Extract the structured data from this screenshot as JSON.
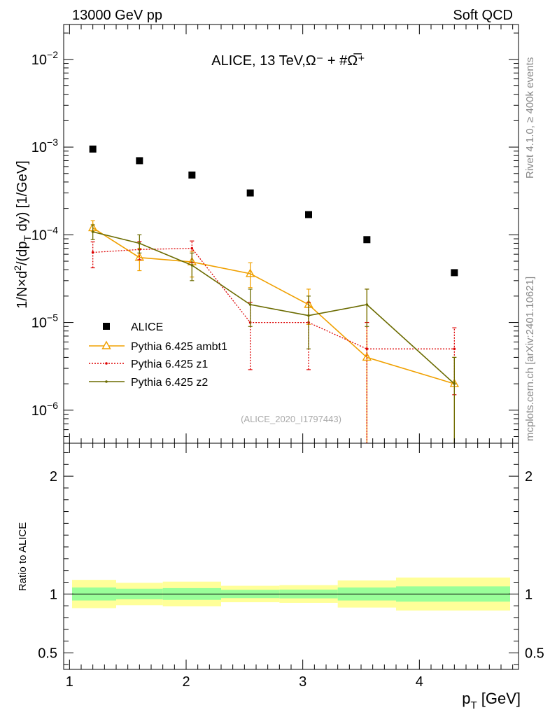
{
  "header": {
    "left": "13000 GeV pp",
    "right": "Soft QCD"
  },
  "side_labels": {
    "rivet": "Rivet 4.1.0, ≥ 400k events",
    "mcplots": "mcplots.cern.ch [arXiv:2401.10621]"
  },
  "colors": {
    "data": "#000000",
    "ambt1": "#f0a000",
    "z1": "#dd0000",
    "z2": "#6b6b00",
    "band_inner": "#99ff99",
    "band_outer": "#ffff99"
  },
  "chart_data": [
    {
      "type": "scatter",
      "title": "ALICE, 13 TeV,Ω⁻ + #Ω̅⁺",
      "watermark": "(ALICE_2020_I1797443)",
      "xlabel": "",
      "ylabel": "1/N× d²/(dp_T dy) [1/GeV]",
      "ylabel_parts": {
        "prefix": "1/N",
        "times": "×",
        "d": "d",
        "sq": "2",
        "mid": "/(dp",
        "sub": "T",
        "end": " dy) [1/GeV]"
      },
      "yscale": "log",
      "xlim": [
        0.95,
        4.85
      ],
      "ylim": [
        4.2e-07,
        0.025
      ],
      "y_ticks": [
        {
          "value": 1e-06,
          "base": "10",
          "exp": "−6"
        },
        {
          "value": 1e-05,
          "base": "10",
          "exp": "−5"
        },
        {
          "value": 0.0001,
          "base": "10",
          "exp": "−4"
        },
        {
          "value": 0.001,
          "base": "10",
          "exp": "−3"
        },
        {
          "value": 0.01,
          "base": "10",
          "exp": "−2"
        }
      ],
      "legend_position": "middle-left",
      "series": [
        {
          "name": "ALICE",
          "key": "data",
          "marker": "square",
          "x": [
            1.2,
            1.6,
            2.05,
            2.55,
            3.05,
            3.55,
            4.3
          ],
          "y": [
            0.00095,
            0.0007,
            0.00048,
            0.0003,
            0.00017,
            8.8e-05,
            3.7e-05
          ]
        },
        {
          "name": "Pythia 6.425 ambt1",
          "key": "ambt1",
          "marker": "triangle",
          "line": "solid",
          "x": [
            1.2,
            1.6,
            2.05,
            2.55,
            3.05,
            3.55,
            4.3
          ],
          "y": [
            0.00012,
            5.5e-05,
            4.9e-05,
            3.6e-05,
            1.6e-05,
            4e-06,
            2e-06
          ],
          "err_low": [
            0.00011,
            3.9e-05,
            3.3e-05,
            2.5e-05,
            9.5e-06,
            3e-07,
            3e-07
          ],
          "err_high": [
            0.000145,
            7e-05,
            6.5e-05,
            4.8e-05,
            2.4e-05,
            2.4e-05,
            4e-06
          ]
        },
        {
          "name": "Pythia 6.425 z1",
          "key": "z1",
          "marker": "dot",
          "line": "dotted",
          "x": [
            1.2,
            1.6,
            2.05,
            2.55,
            3.05,
            3.55,
            4.3
          ],
          "y": [
            6.3e-05,
            6.8e-05,
            7e-05,
            1e-05,
            1e-05,
            5e-06,
            5e-06
          ],
          "err_low": [
            4.2e-05,
            5.2e-05,
            4.8e-05,
            2.9e-06,
            2.9e-06,
            3e-07,
            1.5e-06
          ],
          "err_high": [
            8.3e-05,
            8.4e-05,
            8.5e-05,
            1.7e-05,
            1.7e-05,
            1e-05,
            8.7e-06
          ]
        },
        {
          "name": "Pythia 6.425 z2",
          "key": "z2",
          "marker": "dot",
          "line": "solid",
          "x": [
            1.2,
            1.6,
            2.05,
            2.55,
            3.05,
            3.55,
            4.3
          ],
          "y": [
            0.000108,
            8e-05,
            4.5e-05,
            1.6e-05,
            1.2e-05,
            1.6e-05,
            2e-06
          ],
          "err_low": [
            8.8e-05,
            6.2e-05,
            3e-05,
            9e-06,
            5e-06,
            9e-06,
            3e-07
          ],
          "err_high": [
            0.00013,
            0.0001,
            6.2e-05,
            2.4e-05,
            2e-05,
            2.4e-05,
            4e-06
          ]
        }
      ]
    },
    {
      "type": "line",
      "ylabel": "Ratio to ALICE",
      "xlabel": "p_T [GeV]",
      "xlabel_parts": {
        "p": "p",
        "sub": "T",
        "rest": " [GeV]"
      },
      "xlim": [
        0.95,
        4.85
      ],
      "ylim": [
        0.36,
        2.28
      ],
      "x_tick_labels": [
        "1",
        "2",
        "3",
        "4"
      ],
      "y_tick_labels": [
        "0.5",
        "1",
        "2"
      ],
      "y_tick_values": [
        0.5,
        1,
        2
      ],
      "reference": 1,
      "bins": [
        {
          "x_low": 0.95,
          "x_high": 1.4,
          "inner": [
            0.945,
            1.055
          ],
          "outer": [
            0.88,
            1.12
          ]
        },
        {
          "x_low": 1.4,
          "x_high": 1.8,
          "inner": [
            0.955,
            1.045
          ],
          "outer": [
            0.905,
            1.095
          ]
        },
        {
          "x_low": 1.8,
          "x_high": 2.3,
          "inner": [
            0.95,
            1.05
          ],
          "outer": [
            0.895,
            1.105
          ]
        },
        {
          "x_low": 2.3,
          "x_high": 2.8,
          "inner": [
            0.965,
            1.035
          ],
          "outer": [
            0.93,
            1.07
          ]
        },
        {
          "x_low": 2.8,
          "x_high": 3.3,
          "inner": [
            0.963,
            1.037
          ],
          "outer": [
            0.925,
            1.075
          ]
        },
        {
          "x_low": 3.3,
          "x_high": 3.8,
          "inner": [
            0.945,
            1.055
          ],
          "outer": [
            0.885,
            1.115
          ]
        },
        {
          "x_low": 3.8,
          "x_high": 4.85,
          "inner": [
            0.935,
            1.065
          ],
          "outer": [
            0.86,
            1.14
          ]
        }
      ]
    }
  ]
}
